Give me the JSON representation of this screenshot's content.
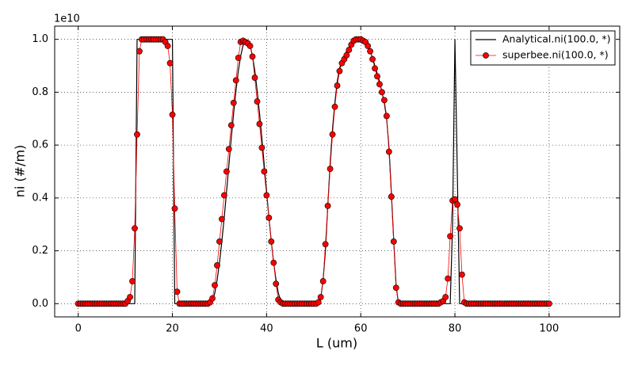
{
  "chart_data": {
    "type": "line",
    "xlabel": "L (um)",
    "ylabel": "ni (#/m)",
    "y_offset_text": "1e10",
    "xlim": [
      -5,
      115
    ],
    "ylim": [
      -0.05,
      1.05
    ],
    "xticks": [
      0,
      20,
      40,
      60,
      80,
      100
    ],
    "yticks": [
      {
        "value": 0,
        "label": "0.0"
      },
      0.2,
      0.4,
      0.6,
      0.8,
      {
        "value": 1,
        "label": "1.0"
      }
    ],
    "grid": true,
    "legend": "upper right",
    "x": [
      0,
      0.5,
      1,
      1.5,
      2,
      2.5,
      3,
      3.5,
      4,
      4.5,
      5,
      5.5,
      6,
      6.5,
      7,
      7.5,
      8,
      8.5,
      9,
      9.5,
      10,
      10.5,
      11,
      11.5,
      12,
      12.5,
      13,
      13.5,
      14,
      14.5,
      15,
      15.5,
      16,
      16.5,
      17,
      17.5,
      18,
      18.5,
      19,
      19.5,
      20,
      20.5,
      21,
      21.5,
      22,
      22.5,
      23,
      23.5,
      24,
      24.5,
      25,
      25.5,
      26,
      26.5,
      27,
      27.5,
      28,
      28.5,
      29,
      29.5,
      30,
      30.5,
      31,
      31.5,
      32,
      32.5,
      33,
      33.5,
      34,
      34.5,
      35,
      35.5,
      36,
      36.5,
      37,
      37.5,
      38,
      38.5,
      39,
      39.5,
      40,
      40.5,
      41,
      41.5,
      42,
      42.5,
      43,
      43.5,
      44,
      44.5,
      45,
      45.5,
      46,
      46.5,
      47,
      47.5,
      48,
      48.5,
      49,
      49.5,
      50,
      50.5,
      51,
      51.5,
      52,
      52.5,
      53,
      53.5,
      54,
      54.5,
      55,
      55.5,
      56,
      56.5,
      57,
      57.5,
      58,
      58.5,
      59,
      59.5,
      60,
      60.5,
      61,
      61.5,
      62,
      62.5,
      63,
      63.5,
      64,
      64.5,
      65,
      65.5,
      66,
      66.5,
      67,
      67.5,
      68,
      68.5,
      69,
      69.5,
      70,
      70.5,
      71,
      71.5,
      72,
      72.5,
      73,
      73.5,
      74,
      74.5,
      75,
      75.5,
      76,
      76.5,
      77,
      77.5,
      78,
      78.5,
      79,
      79.5,
      80,
      80.5,
      81,
      81.5,
      82,
      82.5,
      83,
      83.5,
      84,
      84.5,
      85,
      85.5,
      86,
      86.5,
      87,
      87.5,
      88,
      88.5,
      89,
      89.5,
      90,
      90.5,
      91,
      91.5,
      92,
      92.5,
      93,
      93.5,
      94,
      94.5,
      95,
      95.5,
      96,
      96.5,
      97,
      97.5,
      98,
      98.5,
      99,
      99.5,
      100
    ],
    "series": [
      {
        "name": "Analytical.ni(100.0, *)",
        "color": "#000000",
        "markers": false,
        "values": [
          0,
          0,
          0,
          0,
          0,
          0,
          0,
          0,
          0,
          0,
          0,
          0,
          0,
          0,
          0,
          0,
          0,
          0,
          0,
          0,
          0,
          0,
          0,
          0,
          0,
          1,
          1,
          1,
          1,
          1,
          1,
          1,
          1,
          1,
          1,
          1,
          1,
          1,
          1,
          1,
          1,
          0,
          0,
          0,
          0,
          0,
          0,
          0,
          0,
          0,
          0,
          0,
          0,
          0,
          0,
          0,
          0,
          0.01,
          0.04,
          0.09,
          0.155,
          0.236,
          0.325,
          0.424,
          0.525,
          0.626,
          0.72,
          0.806,
          0.881,
          0.937,
          0.977,
          0.997,
          0.997,
          0.977,
          0.937,
          0.881,
          0.806,
          0.72,
          0.626,
          0.525,
          0.424,
          0.325,
          0.236,
          0.155,
          0.09,
          0.04,
          0.01,
          0,
          0,
          0,
          0,
          0,
          0,
          0,
          0,
          0,
          0,
          0,
          0,
          0,
          0,
          0,
          0,
          0.02,
          0.09,
          0.2,
          0.37,
          0.53,
          0.66,
          0.76,
          0.84,
          0.89,
          0.92,
          0.94,
          0.955,
          0.97,
          0.985,
          0.995,
          1,
          1,
          1,
          0.995,
          0.99,
          0.975,
          0.955,
          0.93,
          0.9,
          0.87,
          0.84,
          0.8,
          0.76,
          0.7,
          0.59,
          0.42,
          0.24,
          0.07,
          0,
          0,
          0,
          0,
          0,
          0,
          0,
          0,
          0,
          0,
          0,
          0,
          0,
          0,
          0,
          0,
          0,
          0,
          0,
          0,
          0,
          0,
          0,
          0.3,
          1,
          0.5,
          0,
          0,
          0,
          0,
          0,
          0,
          0,
          0,
          0,
          0,
          0,
          0,
          0,
          0,
          0,
          0,
          0,
          0,
          0,
          0,
          0,
          0,
          0,
          0,
          0,
          0,
          0,
          0,
          0,
          0,
          0,
          0,
          0,
          0,
          0,
          0,
          0,
          0,
          0
        ]
      },
      {
        "name": "superbee.ni(100.0, *)",
        "color": "#ff0000",
        "markers": true,
        "values": [
          0,
          0,
          0,
          0,
          0,
          0,
          0,
          0,
          0,
          0,
          0,
          0,
          0,
          0,
          0,
          0,
          0,
          0,
          0,
          0,
          0,
          0.01,
          0.025,
          0.085,
          0.285,
          0.64,
          0.955,
          1,
          1,
          1,
          1,
          1,
          1,
          1,
          1,
          1,
          1,
          0.99,
          0.975,
          0.91,
          0.715,
          0.36,
          0.045,
          0,
          0,
          0,
          0,
          0,
          0,
          0,
          0,
          0,
          0,
          0,
          0,
          0,
          0.005,
          0.02,
          0.07,
          0.145,
          0.235,
          0.32,
          0.41,
          0.5,
          0.585,
          0.675,
          0.76,
          0.845,
          0.93,
          0.99,
          0.995,
          0.99,
          0.985,
          0.975,
          0.935,
          0.855,
          0.765,
          0.68,
          0.59,
          0.5,
          0.41,
          0.325,
          0.235,
          0.155,
          0.075,
          0.015,
          0.005,
          0,
          0,
          0,
          0,
          0,
          0,
          0,
          0,
          0,
          0,
          0,
          0,
          0,
          0,
          0,
          0.005,
          0.025,
          0.085,
          0.225,
          0.37,
          0.51,
          0.64,
          0.745,
          0.825,
          0.88,
          0.91,
          0.925,
          0.94,
          0.96,
          0.98,
          0.995,
          1,
          1,
          1,
          0.995,
          0.99,
          0.975,
          0.955,
          0.925,
          0.89,
          0.86,
          0.83,
          0.8,
          0.77,
          0.71,
          0.575,
          0.405,
          0.235,
          0.06,
          0.005,
          0,
          0,
          0,
          0,
          0,
          0,
          0,
          0,
          0,
          0,
          0,
          0,
          0,
          0,
          0,
          0,
          0,
          0.005,
          0.01,
          0.025,
          0.095,
          0.255,
          0.39,
          0.395,
          0.375,
          0.285,
          0.11,
          0.005,
          0,
          0,
          0,
          0,
          0,
          0,
          0,
          0,
          0,
          0,
          0,
          0,
          0,
          0,
          0,
          0,
          0,
          0,
          0,
          0,
          0,
          0,
          0,
          0,
          0,
          0,
          0,
          0,
          0,
          0,
          0,
          0,
          0,
          0,
          0,
          0
        ]
      }
    ]
  }
}
